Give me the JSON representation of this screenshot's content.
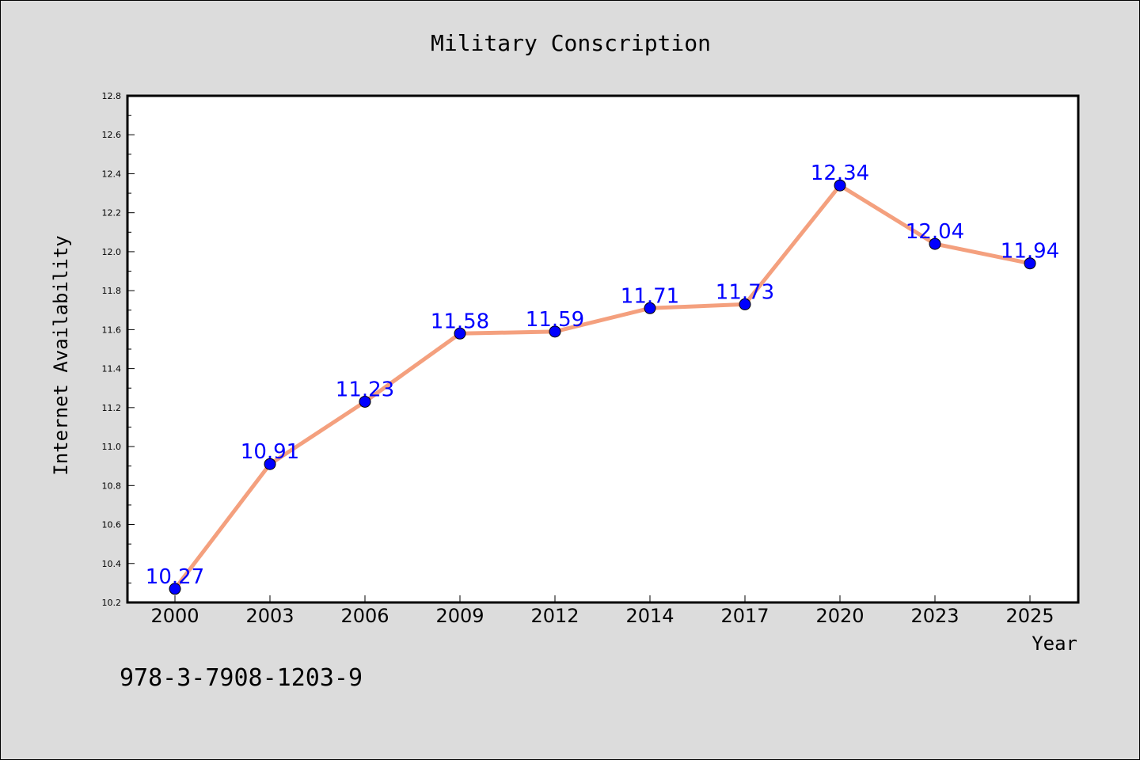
{
  "colors": {
    "background": "#dcdcdc",
    "plot_background": "#ffffff",
    "line": "#f4a07e",
    "marker": "#0000ff",
    "data_label": "#0000ff"
  },
  "footer_text": "978-3-7908-1203-9",
  "chart_data": {
    "type": "line",
    "title": "Military Conscription",
    "xlabel": "Year",
    "ylabel": "Internet Availability",
    "categories": [
      "2000",
      "2003",
      "2006",
      "2009",
      "2012",
      "2014",
      "2017",
      "2020",
      "2023",
      "2025"
    ],
    "series": [
      {
        "values": [
          10.27,
          10.91,
          11.23,
          11.58,
          11.59,
          11.71,
          11.73,
          12.34,
          12.04,
          11.94
        ],
        "labels": [
          "10.27",
          "10.91",
          "11.23",
          "11.58",
          "11.59",
          "11.71",
          "11.73",
          "12.34",
          "12.04",
          "11.94"
        ]
      }
    ],
    "ylim": [
      10.2,
      12.8
    ],
    "yticks": [
      "10.2",
      "10.4",
      "10.6",
      "10.8",
      "11.0",
      "11.2",
      "11.4",
      "11.6",
      "11.8",
      "12.0",
      "12.2",
      "12.4",
      "12.6",
      "12.8"
    ],
    "grid": false,
    "legend": "none"
  }
}
